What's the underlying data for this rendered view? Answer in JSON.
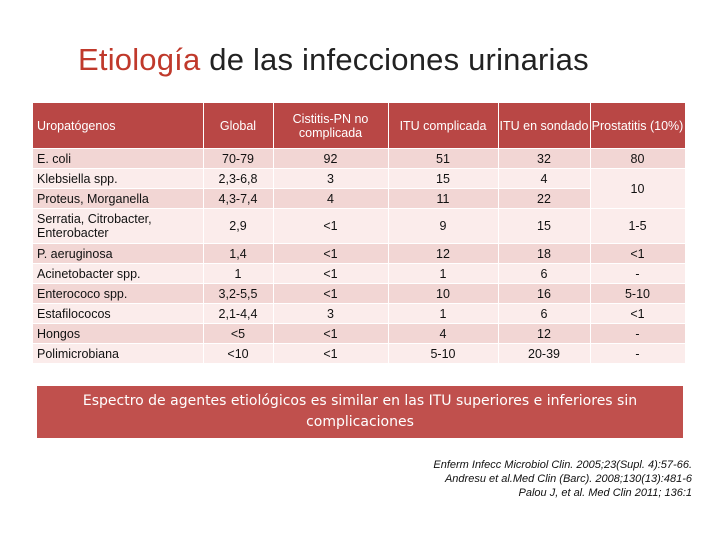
{
  "slide": {
    "title_part1": "Etiología",
    "title_part2": " de las infecciones urinarias"
  },
  "table": {
    "headers": [
      "Uropatógenos",
      "Global",
      "Cistitis-PN no complicada",
      "ITU complicada",
      "ITU en sondado",
      "Prostatitis (10%)"
    ],
    "rows": [
      {
        "label": "E. coli",
        "global": "70-79",
        "cistitis": "92",
        "complicada": "51",
        "sondado": "32",
        "prostatitis": "80"
      },
      {
        "label": "Klebsiella spp.",
        "global": "2,3-6,8",
        "cistitis": "3",
        "complicada": "15",
        "sondado": "4",
        "prostatitis": "10"
      },
      {
        "label": "Proteus, Morganella",
        "global": "4,3-7,4",
        "cistitis": "4",
        "complicada": "11",
        "sondado": "22"
      },
      {
        "label": "Serratia, Citrobacter, Enterobacter",
        "global": "2,9",
        "cistitis": "<1",
        "complicada": "9",
        "sondado": "15",
        "prostatitis": "1-5"
      },
      {
        "label": "P. aeruginosa",
        "global": "1,4",
        "cistitis": "<1",
        "complicada": "12",
        "sondado": "18",
        "prostatitis": "<1"
      },
      {
        "label": "Acinetobacter spp.",
        "global": "1",
        "cistitis": "<1",
        "complicada": "1",
        "sondado": "6",
        "prostatitis": "-"
      },
      {
        "label": "Enterococo spp.",
        "global": "3,2-5,5",
        "cistitis": "<1",
        "complicada": "10",
        "sondado": "16",
        "prostatitis": "5-10"
      },
      {
        "label": "Estafilococos",
        "global": "2,1-4,4",
        "cistitis": "3",
        "complicada": "1",
        "sondado": "6",
        "prostatitis": "<1"
      },
      {
        "label": "Hongos",
        "global": "<5",
        "cistitis": "<1",
        "complicada": "4",
        "sondado": "12",
        "prostatitis": "-"
      },
      {
        "label": "Polimicrobiana",
        "global": "<10",
        "cistitis": "<1",
        "complicada": "5-10",
        "sondado": "20-39",
        "prostatitis": "-"
      }
    ]
  },
  "banner": {
    "text": "Espectro de agentes etiológicos es similar en las ITU superiores e inferiores sin complicaciones"
  },
  "references": [
    "Enferm Infecc Microbiol Clin. 2005;23(Supl. 4):57-66.",
    "Andresu et al.Med Clin (Barc). 2008;130(13):481-6",
    "Palou J, et al. Med Clin 2011; 136:1"
  ]
}
